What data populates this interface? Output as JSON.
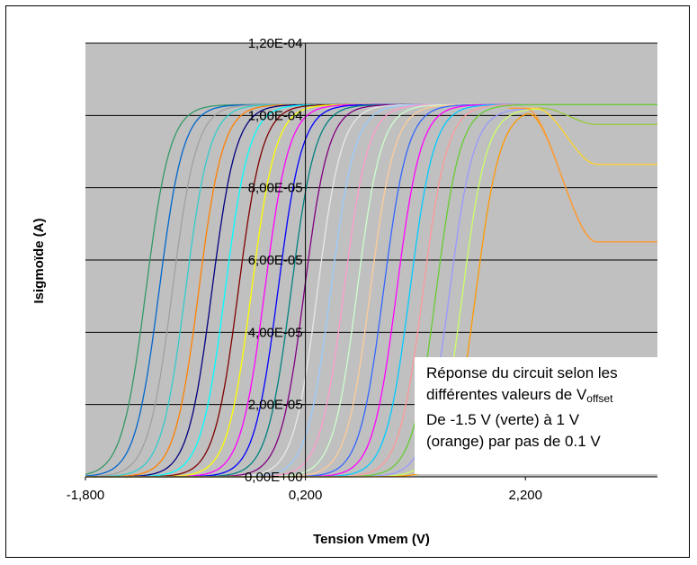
{
  "chart_data": {
    "type": "line",
    "title": "",
    "xlabel": "Tension Vmem (V)",
    "ylabel": "Isigmoïde (A)",
    "xlim": [
      -1.8,
      3.4
    ],
    "ylim": [
      0,
      0.00012
    ],
    "x_ticks": [
      "-1,800",
      "0,200",
      "2,200"
    ],
    "y_ticks": [
      "0,00E+00",
      "2,00E-05",
      "4,00E-05",
      "6,00E-05",
      "8,00E-05",
      "1,00E-04",
      "1,20E-04"
    ],
    "grid": true,
    "background": "#c0c0c0",
    "annotation": {
      "line1": "Réponse du circuit selon les",
      "line2_prefix": "différentes valeurs de V",
      "line2_sub": "offset",
      "line3": "De -1.5 V (verte) à 1 V",
      "line4": "(orange) par pas de 0.1 V"
    },
    "series": [
      {
        "voffset": -1.5,
        "color": "#339966",
        "midpoint_x": -1.25,
        "plateau": 0.000103
      },
      {
        "voffset": -1.4,
        "color": "#0066cc",
        "midpoint_x": -1.13,
        "plateau": 0.000103
      },
      {
        "voffset": -1.3,
        "color": "#a0a0a0",
        "midpoint_x": -1.01,
        "plateau": 0.000103
      },
      {
        "voffset": -1.2,
        "color": "#33cccc",
        "midpoint_x": -0.89,
        "plateau": 0.000103
      },
      {
        "voffset": -1.1,
        "color": "#ff8000",
        "midpoint_x": -0.77,
        "plateau": 0.000103
      },
      {
        "voffset": -1.0,
        "color": "#000080",
        "midpoint_x": -0.65,
        "plateau": 0.000103
      },
      {
        "voffset": -0.9,
        "color": "#00ffff",
        "midpoint_x": -0.53,
        "plateau": 0.000103
      },
      {
        "voffset": -0.8,
        "color": "#800000",
        "midpoint_x": -0.41,
        "plateau": 0.000103
      },
      {
        "voffset": -0.7,
        "color": "#ffff00",
        "midpoint_x": -0.29,
        "plateau": 0.000103
      },
      {
        "voffset": -0.6,
        "color": "#ff00ff",
        "midpoint_x": -0.17,
        "plateau": 0.000103
      },
      {
        "voffset": -0.5,
        "color": "#0000ff",
        "midpoint_x": -0.05,
        "plateau": 0.000103
      },
      {
        "voffset": -0.4,
        "color": "#008080",
        "midpoint_x": 0.07,
        "plateau": 0.000103
      },
      {
        "voffset": -0.3,
        "color": "#800080",
        "midpoint_x": 0.19,
        "plateau": 0.000103
      },
      {
        "voffset": -0.2,
        "color": "#e8e8e8",
        "midpoint_x": 0.31,
        "plateau": 0.000103
      },
      {
        "voffset": -0.1,
        "color": "#99ccff",
        "midpoint_x": 0.43,
        "plateau": 0.000103
      },
      {
        "voffset": 0.0,
        "color": "#ff99cc",
        "midpoint_x": 0.55,
        "plateau": 0.000103
      },
      {
        "voffset": 0.1,
        "color": "#ccffcc",
        "midpoint_x": 0.67,
        "plateau": 0.000103
      },
      {
        "voffset": 0.2,
        "color": "#ffcc99",
        "midpoint_x": 0.79,
        "plateau": 0.000103
      },
      {
        "voffset": 0.3,
        "color": "#3366ff",
        "midpoint_x": 0.91,
        "plateau": 0.000103
      },
      {
        "voffset": 0.4,
        "color": "#ff00ff",
        "midpoint_x": 1.03,
        "plateau": 0.000103
      },
      {
        "voffset": 0.5,
        "color": "#00ccff",
        "midpoint_x": 1.15,
        "plateau": 0.000103
      },
      {
        "voffset": 0.6,
        "color": "#ff9999",
        "midpoint_x": 1.27,
        "plateau": 0.000103
      },
      {
        "voffset": 0.7,
        "color": "#66cc33",
        "midpoint_x": 1.39,
        "plateau": 0.000103
      },
      {
        "voffset": 0.8,
        "color": "#9999ff",
        "midpoint_x": 1.51,
        "plateau": 0.000102
      },
      {
        "voffset": 0.9,
        "color": "#ccff66",
        "midpoint_x": 1.63,
        "plateau": 0.000102
      },
      {
        "voffset": 1.0,
        "color": "#ff9900",
        "midpoint_x": 1.75,
        "plateau": 0.000102
      }
    ],
    "sag_curves": [
      {
        "voffset": 0.8,
        "color": "#99cc33",
        "start_x": 2.35,
        "end_x": 2.85,
        "final": 9.75e-05
      },
      {
        "voffset": 0.9,
        "color": "#ffcc33",
        "start_x": 2.3,
        "end_x": 2.85,
        "final": 8.65e-05
      },
      {
        "voffset": 1.0,
        "color": "#ff9933",
        "start_x": 2.2,
        "end_x": 2.85,
        "final": 6.5e-05
      }
    ]
  }
}
